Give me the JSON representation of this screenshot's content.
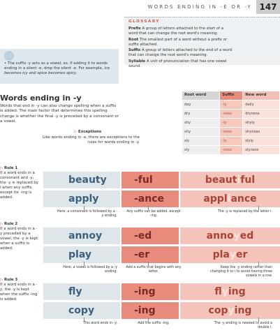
{
  "header": {
    "title": "WORDS ENDING IN -E OR -Y",
    "page": "147"
  },
  "glossary": {
    "title": "GLOSSARY",
    "entries": [
      {
        "term": "Prefix",
        "text": "A group of letters attached to the start of a word that can change the root word's meaning."
      },
      {
        "term": "Root",
        "text": "The smallest part of a word without a prefix or suffix attached."
      },
      {
        "term": "Suffix",
        "text": "A group of letters attached to the end of a word that can change the root word's meaning."
      },
      {
        "term": "Syllable",
        "text": "A unit of pronunciation that has one vowel sound."
      }
    ]
  },
  "tip": {
    "text": "The suffix -y acts as a vowel, so, if adding it to words ending in a silent -e, drop the silent -e. For example,",
    "example": "ice becomes icy and spice becomes spicy."
  },
  "section": {
    "title": "Words ending in -y",
    "intro": "Words that end in -y can also change spelling when a suffix is added. The main factor that determines this spelling change is whether the final -y is preceded by a consonant or a vowel.",
    "exceptions_label": "Exceptions",
    "exceptions_text": "Like words ending in -e, there are exceptions to the rules for words ending in -y."
  },
  "table": {
    "headers": [
      "Root word",
      "Suffix",
      "New word"
    ],
    "rows": [
      [
        "day",
        "-ly",
        "daily"
      ],
      [
        "dry",
        "-ness",
        "dryness"
      ],
      [
        "shy",
        "-ly",
        "shyly"
      ],
      [
        "shy",
        "-ness",
        "shyness"
      ],
      [
        "sly",
        "-ly",
        "slyly"
      ],
      [
        "sly",
        "-ness",
        "slyness"
      ]
    ]
  },
  "rules": [
    {
      "label": "Rule 1",
      "text": "If a word ends in a consonant and -y, the -y is replaced by i when any suffix except for -ing is added.",
      "rows": [
        {
          "root": "beauty",
          "suffix": "-ful",
          "new": [
            "beaut",
            "i",
            "ful"
          ]
        },
        {
          "root": "apply",
          "suffix": "-ance",
          "new": [
            "appl",
            "i",
            "ance"
          ]
        }
      ],
      "notes": [
        "Here, a consonant is followed by a -y ending.",
        "Any suffix can be added, except -ing.",
        "The -y is replaced by the letter i."
      ]
    },
    {
      "label": "Rule 2",
      "text": "If a word ends in a -y preceded by a vowel, the -y is kept when a suffix is added.",
      "rows": [
        {
          "root": "annoy",
          "suffix": "-ed",
          "new": [
            "anno",
            "y",
            "ed"
          ]
        },
        {
          "root": "play",
          "suffix": "-er",
          "new": [
            "pla",
            "y",
            "er"
          ]
        }
      ],
      "notes": [
        "Here, a vowel is followed by a -y ending.",
        "Add a suffix that begins with any letter.",
        "Keep the -y ending rather than changing it to i to avoid having three vowels in a row."
      ]
    },
    {
      "label": "Rule 3",
      "text": "If a word ends in a -y, the -y is kept when the suffix -ing is added.",
      "rows": [
        {
          "root": "fly",
          "suffix": "-ing",
          "new": [
            "fl",
            "y",
            "ing"
          ]
        },
        {
          "root": "copy",
          "suffix": "-ing",
          "new": [
            "cop",
            "y",
            "ing"
          ]
        }
      ],
      "notes": [
        "This word ends in -y.",
        "Add the suffix -ing.",
        "The -y ending is needed to avoid a double i."
      ]
    }
  ]
}
